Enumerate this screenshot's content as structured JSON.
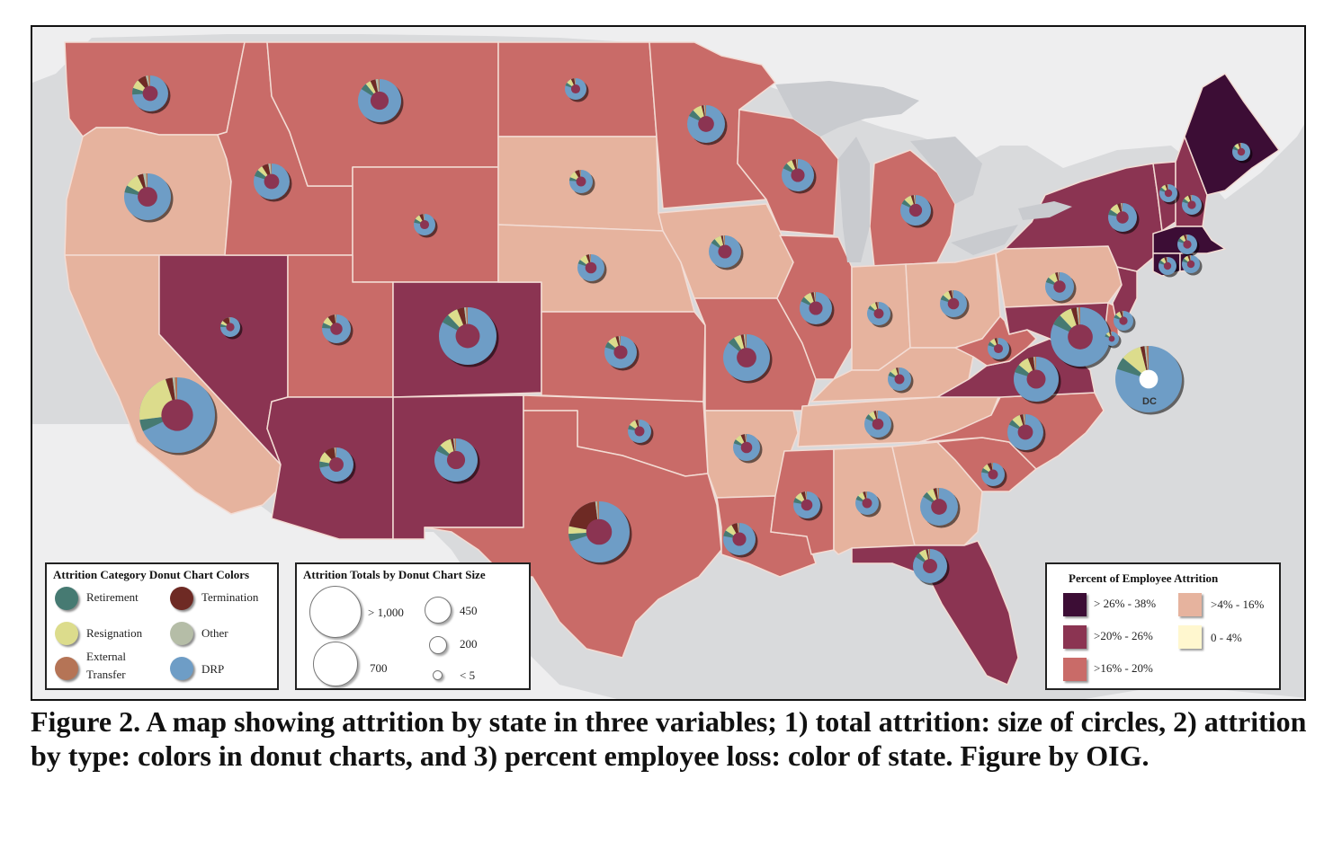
{
  "colors": {
    "ocean": "#d9dadc",
    "land_outside": "#eeeeef",
    "lakes": "#c9cbcf",
    "tier_26_38": "#3c0d35",
    "tier_20_26": "#8b3452",
    "tier_16_20": "#c96b68",
    "tier_4_16": "#e6b39e",
    "tier_0_4": "#fff7cf",
    "retirement": "#467a72",
    "termination": "#6e2a24",
    "resignation": "#dcdc8c",
    "other": "#b5bda7",
    "external_transfer": "#b57456",
    "drp": "#6e9dc6"
  },
  "donut_legend": {
    "title": "Attrition Category Donut Chart Colors",
    "items": [
      {
        "key": "retirement",
        "label": "Retirement"
      },
      {
        "key": "termination",
        "label": "Termination"
      },
      {
        "key": "resignation",
        "label": "Resignation"
      },
      {
        "key": "other",
        "label": "Other"
      },
      {
        "key": "external_transfer",
        "label": "External Transfer",
        "label_line1": "External",
        "label_line2": "Transfer"
      },
      {
        "key": "drp",
        "label": "DRP"
      }
    ]
  },
  "size_legend": {
    "title": "Attrition Totals by Donut Chart Size",
    "items": [
      {
        "label": "> 1,000",
        "value": 1000
      },
      {
        "label": "700",
        "value": 700
      },
      {
        "label": "450",
        "value": 450
      },
      {
        "label": "200",
        "value": 200
      },
      {
        "label": "< 5",
        "value": 5
      }
    ]
  },
  "percent_legend": {
    "title": "Percent of Employee Attrition",
    "items": [
      {
        "key": "tier_26_38",
        "label": "> 26% - 38%"
      },
      {
        "key": "tier_4_16",
        "label": ">4% - 16%"
      },
      {
        "key": "tier_20_26",
        "label": ">20% - 26%"
      },
      {
        "key": "tier_0_4",
        "label": "0 - 4%"
      },
      {
        "key": "tier_16_20",
        "label": ">16% - 20%"
      }
    ]
  },
  "dc_label": "DC",
  "caption": "Figure 2. A map showing attrition by state in three variables; 1) total attrition: size of circles, 2) attrition by type: colors in donut charts, and 3) percent employee loss: color of state. Figure by OIG."
}
